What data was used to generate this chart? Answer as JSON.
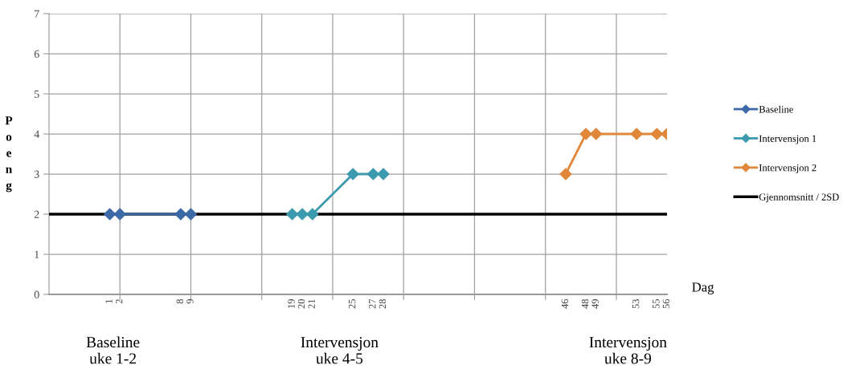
{
  "chart_data": {
    "type": "line",
    "xlabel": "Dag",
    "ylabel": "Poeng",
    "xlim": [
      -5,
      56
    ],
    "ylim": [
      0,
      7
    ],
    "yticks": [
      0,
      1,
      2,
      3,
      4,
      5,
      6,
      7
    ],
    "xticks": [
      {
        "value": 2,
        "label": null
      },
      {
        "value": 9,
        "label": null
      },
      {
        "value": 16,
        "label": null
      },
      {
        "value": 23,
        "label": null
      },
      {
        "value": 30,
        "label": null
      },
      {
        "value": 37,
        "label": null
      },
      {
        "value": 44,
        "label": null
      },
      {
        "value": 51,
        "label": null
      },
      {
        "value": 1,
        "label": "1"
      },
      {
        "value": 2,
        "label": "2"
      },
      {
        "value": 8,
        "label": "8"
      },
      {
        "value": 9,
        "label": "9"
      },
      {
        "value": 19,
        "label": "19"
      },
      {
        "value": 20,
        "label": "20"
      },
      {
        "value": 21,
        "label": "21"
      },
      {
        "value": 25,
        "label": "25"
      },
      {
        "value": 27,
        "label": "27"
      },
      {
        "value": 28,
        "label": "28"
      },
      {
        "value": 46,
        "label": "46"
      },
      {
        "value": 48,
        "label": "48"
      },
      {
        "value": 49,
        "label": "49"
      },
      {
        "value": 53,
        "label": "53"
      },
      {
        "value": 55,
        "label": "55"
      },
      {
        "value": 56,
        "label": "56"
      }
    ],
    "grid": true,
    "legend": "right",
    "marker": "diamond",
    "line_style": "solid",
    "series": [
      {
        "name": "Baseline",
        "color": "#3d6aa6",
        "x": [
          1,
          2,
          8,
          9
        ],
        "values": [
          2,
          2,
          2,
          2
        ]
      },
      {
        "name": "Intervensjon 1",
        "color": "#3b9aae",
        "x": [
          19,
          20,
          21,
          25,
          27,
          28
        ],
        "values": [
          2,
          2,
          2,
          3,
          3,
          3
        ]
      },
      {
        "name": "Intervensjon 2",
        "color": "#e0873a",
        "x": [
          46,
          48,
          49,
          53,
          55,
          56
        ],
        "values": [
          3,
          4,
          4,
          4,
          4,
          4
        ]
      }
    ],
    "ref_lines": [
      {
        "axis": "y",
        "value": 2,
        "label": "Gjennomsnitt / 2SD",
        "color": "#000000",
        "line_style": "solid"
      }
    ],
    "annotations": [
      "Baseline\nuke 1-2",
      "Intervensjon\nuke 4-5",
      "Intervensjon\nuke 8-9"
    ]
  }
}
